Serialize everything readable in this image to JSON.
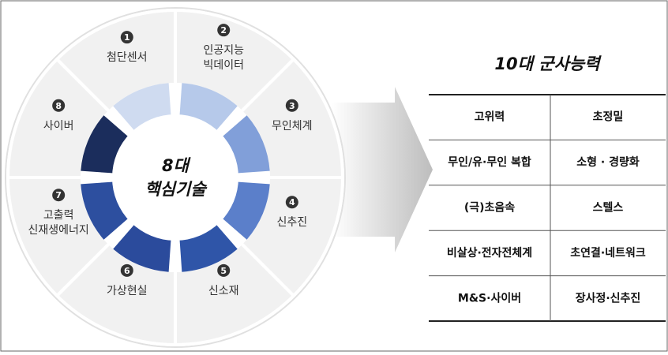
{
  "center": {
    "lines": [
      "8대",
      "핵심기술"
    ]
  },
  "segments": [
    {
      "number": "1",
      "lines": [
        "첨단센서"
      ]
    },
    {
      "number": "2",
      "lines": [
        "인공지능",
        "빅데이터"
      ]
    },
    {
      "number": "3",
      "lines": [
        "무인체계"
      ]
    },
    {
      "number": "4",
      "lines": [
        "신추진"
      ]
    },
    {
      "number": "5",
      "lines": [
        "신소재"
      ]
    },
    {
      "number": "6",
      "lines": [
        "가상현실"
      ]
    },
    {
      "number": "7",
      "lines": [
        "고출력",
        "신재생에너지"
      ]
    },
    {
      "number": "8",
      "lines": [
        "사이버"
      ]
    }
  ],
  "table": {
    "title": "10대 군사능력",
    "rows": [
      [
        "고위력",
        "초정밀"
      ],
      [
        "무인/유·무인 복합",
        "소형 · 경량화"
      ],
      [
        "(극)초음속",
        "스텔스"
      ],
      [
        "비살상·전자전체계",
        "초연결·네트워크"
      ],
      [
        "M&S·사이버",
        "장사정·신추진"
      ]
    ]
  }
}
